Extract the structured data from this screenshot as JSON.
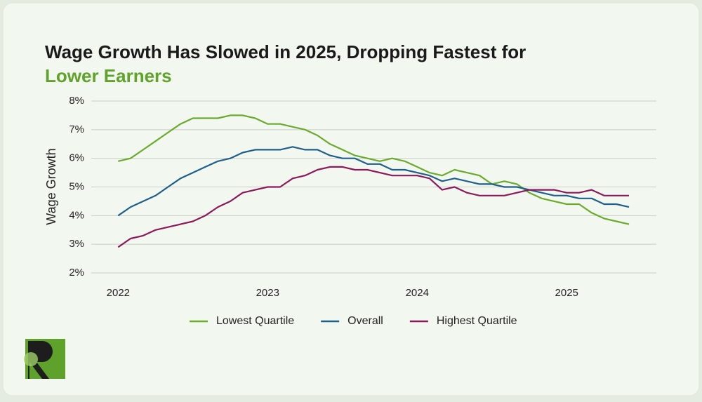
{
  "chart_data": {
    "type": "line",
    "title": "Wage Growth Has Slowed in 2025, Dropping Fastest for ",
    "title_highlight": "Lower Earners",
    "y_label": "Wage Growth",
    "x": [
      2022,
      2022.083,
      2022.167,
      2022.25,
      2022.333,
      2022.417,
      2022.5,
      2022.583,
      2022.667,
      2022.75,
      2022.833,
      2022.917,
      2023,
      2023.083,
      2023.167,
      2023.25,
      2023.333,
      2023.417,
      2023.5,
      2023.583,
      2023.667,
      2023.75,
      2023.833,
      2023.917,
      2024,
      2024.083,
      2024.167,
      2024.25,
      2024.333,
      2024.417,
      2024.5,
      2024.583,
      2024.667,
      2024.75,
      2024.833,
      2024.917,
      2025,
      2025.083,
      2025.167,
      2025.25,
      2025.333,
      2025.417
    ],
    "series": [
      {
        "name": "Lowest Quartile",
        "color": "#6aab2e",
        "values": [
          5.9,
          6.0,
          6.3,
          6.6,
          6.9,
          7.2,
          7.4,
          7.4,
          7.4,
          7.5,
          7.5,
          7.4,
          7.2,
          7.2,
          7.1,
          7.0,
          6.8,
          6.5,
          6.3,
          6.1,
          6.0,
          5.9,
          6.0,
          5.9,
          5.7,
          5.5,
          5.4,
          5.6,
          5.5,
          5.4,
          5.1,
          5.2,
          5.1,
          4.8,
          4.6,
          4.5,
          4.4,
          4.4,
          4.1,
          3.9,
          3.8,
          3.7
        ]
      },
      {
        "name": "Overall",
        "color": "#1f5f8b",
        "values": [
          4.0,
          4.3,
          4.5,
          4.7,
          5.0,
          5.3,
          5.5,
          5.7,
          5.9,
          6.0,
          6.2,
          6.3,
          6.3,
          6.3,
          6.4,
          6.3,
          6.3,
          6.1,
          6.0,
          6.0,
          5.8,
          5.8,
          5.6,
          5.6,
          5.5,
          5.4,
          5.2,
          5.3,
          5.2,
          5.1,
          5.1,
          5.0,
          5.0,
          4.9,
          4.8,
          4.7,
          4.7,
          4.6,
          4.6,
          4.4,
          4.4,
          4.3
        ]
      },
      {
        "name": "Highest Quartile",
        "color": "#8b1a5c",
        "values": [
          2.9,
          3.2,
          3.3,
          3.5,
          3.6,
          3.7,
          3.8,
          4.0,
          4.3,
          4.5,
          4.8,
          4.9,
          5.0,
          5.0,
          5.3,
          5.4,
          5.6,
          5.7,
          5.7,
          5.6,
          5.6,
          5.5,
          5.4,
          5.4,
          5.4,
          5.3,
          4.9,
          5.0,
          4.8,
          4.7,
          4.7,
          4.7,
          4.8,
          4.9,
          4.9,
          4.9,
          4.8,
          4.8,
          4.9,
          4.7,
          4.7,
          4.7
        ]
      }
    ],
    "xlim": [
      2021.82,
      2025.6
    ],
    "xticks": [
      2022,
      2023,
      2024,
      2025
    ],
    "ylim": [
      2,
      8
    ],
    "yticks": [
      {
        "value": 2,
        "label": "2%"
      },
      {
        "value": 3,
        "label": "3%"
      },
      {
        "value": 4,
        "label": "4%"
      },
      {
        "value": 5,
        "label": "5%"
      },
      {
        "value": 6,
        "label": "6%"
      },
      {
        "value": 7,
        "label": "7%"
      },
      {
        "value": 8,
        "label": "8%"
      }
    ],
    "grid": true,
    "legend": "bottom"
  }
}
